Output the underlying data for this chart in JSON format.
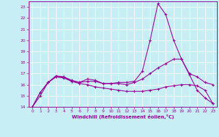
{
  "x": [
    0,
    1,
    2,
    3,
    4,
    5,
    6,
    7,
    8,
    9,
    10,
    11,
    12,
    13,
    14,
    15,
    16,
    17,
    18,
    19,
    20,
    21,
    22,
    23
  ],
  "line1": [
    14.0,
    15.3,
    16.2,
    16.8,
    16.7,
    16.3,
    16.2,
    16.5,
    16.4,
    16.1,
    16.1,
    16.2,
    16.2,
    16.3,
    17.2,
    20.0,
    23.3,
    22.3,
    20.0,
    18.3,
    16.9,
    15.5,
    14.8,
    14.3
  ],
  "line2": [
    14.0,
    15.0,
    16.2,
    16.7,
    16.7,
    16.4,
    16.2,
    16.3,
    16.3,
    16.1,
    16.1,
    16.1,
    16.0,
    16.2,
    16.5,
    17.0,
    17.5,
    17.9,
    18.3,
    18.3,
    17.0,
    16.7,
    16.2,
    16.0
  ],
  "line3": [
    14.0,
    15.3,
    16.2,
    16.7,
    16.6,
    16.3,
    16.1,
    16.0,
    15.8,
    15.7,
    15.6,
    15.5,
    15.4,
    15.4,
    15.4,
    15.5,
    15.6,
    15.8,
    15.9,
    16.0,
    16.0,
    15.9,
    15.5,
    14.3
  ],
  "line_color": "#990099",
  "bg_color": "#c8eef5",
  "grid_color": "#ffffff",
  "xlabel": "Windchill (Refroidissement éolien,°C)",
  "ylim": [
    14,
    23.5
  ],
  "xlim": [
    -0.5,
    23.5
  ],
  "yticks": [
    14,
    15,
    16,
    17,
    18,
    19,
    20,
    21,
    22,
    23
  ],
  "xticks": [
    0,
    1,
    2,
    3,
    4,
    5,
    6,
    7,
    8,
    9,
    10,
    11,
    12,
    13,
    14,
    15,
    16,
    17,
    18,
    19,
    20,
    21,
    22,
    23
  ]
}
